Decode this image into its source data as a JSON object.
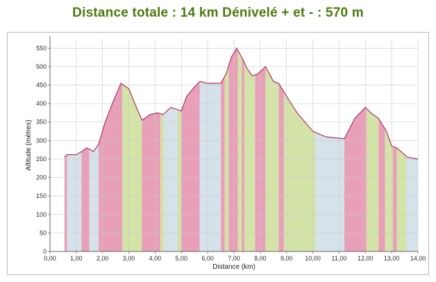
{
  "header": {
    "title": "Distance totale : 14 km Dénivelé + et - : 570 m"
  },
  "colors": {
    "title": "#4a7a10",
    "climb": "#e8a0b8",
    "flat": "#d6e2ea",
    "descent": "#d4e4a8",
    "profile_line": "#b03060",
    "grid": "#c8c8c8"
  },
  "chart_data": {
    "type": "area",
    "title": "Distance totale : 14 km Dénivelé + et - : 570 m",
    "xlabel": "Distance (km)",
    "ylabel": "Altitude (mètres)",
    "xlim": [
      0,
      14
    ],
    "ylim": [
      0,
      575
    ],
    "x_ticks": [
      "0,00",
      "1,00",
      "2,00",
      "3,00",
      "4,00",
      "5,00",
      "6,00",
      "7,00",
      "8,00",
      "9,00",
      "10,00",
      "11,00",
      "12,00",
      "13,00",
      "14,00"
    ],
    "y_ticks": [
      "0",
      "50",
      "100",
      "150",
      "200",
      "250",
      "300",
      "350",
      "400",
      "450",
      "500",
      "550"
    ],
    "grid": true,
    "legend": "none",
    "segment_types": {
      "climb": "montée",
      "flat": "plat",
      "descent": "descente"
    },
    "series": [
      {
        "x": [
          0.55,
          0.65,
          1.0,
          1.2,
          1.4,
          1.55,
          1.65,
          1.85,
          2.1,
          2.4,
          2.7,
          3.0,
          3.2,
          3.5,
          3.8,
          4.1,
          4.3,
          4.6,
          5.0,
          5.2,
          5.5,
          5.7,
          6.0,
          6.5,
          6.7,
          6.9,
          7.1,
          7.3,
          7.5,
          7.7,
          7.9,
          8.2,
          8.5,
          8.7,
          9.0,
          9.4,
          10.0,
          10.5,
          11.2,
          11.6,
          12.0,
          12.2,
          12.5,
          12.8,
          13.0,
          13.2,
          13.6,
          14.0
        ],
        "y": [
          255,
          262,
          262,
          270,
          280,
          275,
          270,
          290,
          350,
          405,
          455,
          440,
          405,
          355,
          370,
          375,
          370,
          390,
          380,
          420,
          445,
          460,
          455,
          455,
          480,
          525,
          550,
          525,
          495,
          475,
          480,
          500,
          460,
          455,
          420,
          375,
          325,
          310,
          305,
          360,
          390,
          375,
          360,
          325,
          285,
          280,
          255,
          250
        ]
      }
    ],
    "bands": [
      {
        "from": 0.55,
        "to": 0.65,
        "kind": "climb"
      },
      {
        "from": 0.65,
        "to": 1.2,
        "kind": "flat"
      },
      {
        "from": 1.2,
        "to": 1.5,
        "kind": "climb"
      },
      {
        "from": 1.5,
        "to": 1.85,
        "kind": "flat"
      },
      {
        "from": 1.85,
        "to": 2.75,
        "kind": "climb"
      },
      {
        "from": 2.75,
        "to": 3.5,
        "kind": "descent"
      },
      {
        "from": 3.5,
        "to": 4.2,
        "kind": "climb"
      },
      {
        "from": 4.2,
        "to": 4.35,
        "kind": "descent"
      },
      {
        "from": 4.35,
        "to": 4.85,
        "kind": "flat"
      },
      {
        "from": 4.85,
        "to": 5.0,
        "kind": "descent"
      },
      {
        "from": 5.0,
        "to": 5.7,
        "kind": "climb"
      },
      {
        "from": 5.7,
        "to": 6.5,
        "kind": "flat"
      },
      {
        "from": 6.5,
        "to": 6.65,
        "kind": "climb"
      },
      {
        "from": 6.65,
        "to": 6.8,
        "kind": "descent"
      },
      {
        "from": 6.8,
        "to": 7.15,
        "kind": "climb"
      },
      {
        "from": 7.15,
        "to": 7.3,
        "kind": "descent"
      },
      {
        "from": 7.3,
        "to": 7.4,
        "kind": "climb"
      },
      {
        "from": 7.4,
        "to": 7.8,
        "kind": "descent"
      },
      {
        "from": 7.8,
        "to": 8.2,
        "kind": "climb"
      },
      {
        "from": 8.2,
        "to": 8.7,
        "kind": "descent"
      },
      {
        "from": 8.7,
        "to": 8.9,
        "kind": "climb"
      },
      {
        "from": 8.9,
        "to": 10.1,
        "kind": "descent"
      },
      {
        "from": 10.1,
        "to": 11.2,
        "kind": "flat"
      },
      {
        "from": 11.2,
        "to": 12.05,
        "kind": "climb"
      },
      {
        "from": 12.05,
        "to": 12.5,
        "kind": "descent"
      },
      {
        "from": 12.5,
        "to": 12.75,
        "kind": "climb"
      },
      {
        "from": 12.75,
        "to": 13.05,
        "kind": "descent"
      },
      {
        "from": 13.05,
        "to": 13.2,
        "kind": "climb"
      },
      {
        "from": 13.2,
        "to": 13.55,
        "kind": "descent"
      },
      {
        "from": 13.55,
        "to": 14.0,
        "kind": "flat"
      }
    ]
  }
}
